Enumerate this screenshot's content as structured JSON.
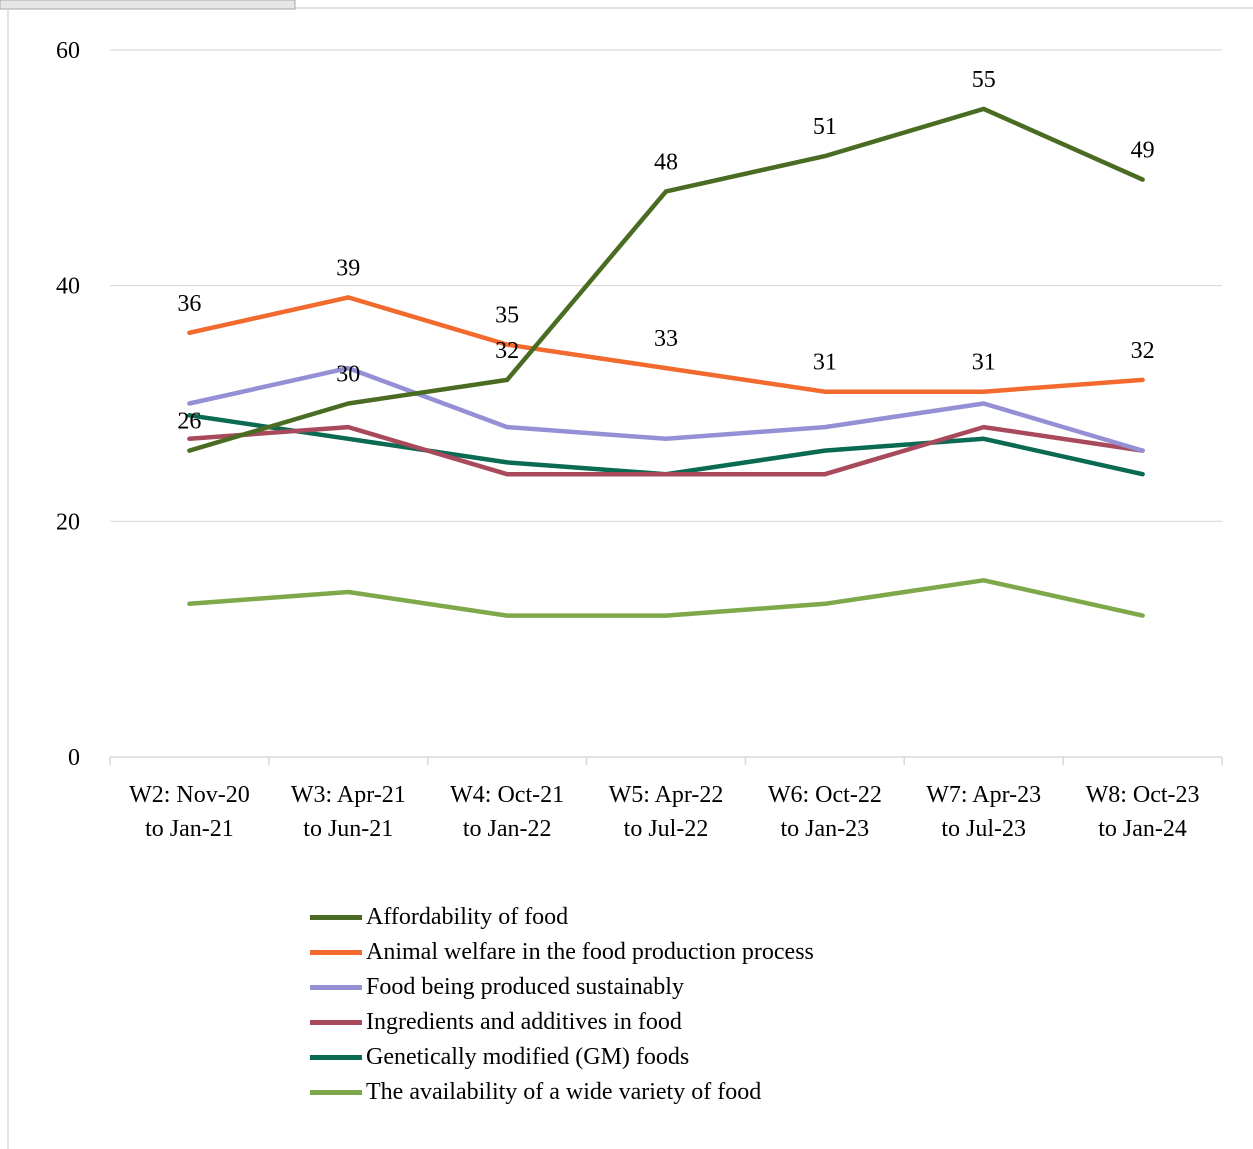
{
  "chart_data": {
    "type": "line",
    "categories": [
      "W2: Nov-20\nto Jan-21",
      "W3: Apr-21\nto Jun-21",
      "W4: Oct-21\nto Jan-22",
      "W5: Apr-22\nto Jul-22",
      "W6: Oct-22\nto Jan-23",
      "W7: Apr-23\nto Jul-23",
      "W8: Oct-23\nto Jan-24"
    ],
    "ylim": [
      0,
      60
    ],
    "yticks": [
      0,
      20,
      40,
      60
    ],
    "grid": true,
    "legend_position": "bottom",
    "series": [
      {
        "name": "Affordability of food",
        "color": "#4A6B22",
        "values": [
          26,
          30,
          32,
          48,
          51,
          55,
          49
        ],
        "labels": true
      },
      {
        "name": "Animal welfare in the food production process",
        "color": "#F26A2E",
        "values": [
          36,
          39,
          35,
          33,
          31,
          31,
          32
        ],
        "labels": true
      },
      {
        "name": "Food being produced sustainably",
        "color": "#9590D6",
        "values": [
          30,
          33,
          28,
          27,
          28,
          30,
          26
        ],
        "labels": false
      },
      {
        "name": "Ingredients and additives in food",
        "color": "#A84A5C",
        "values": [
          27,
          28,
          24,
          24,
          24,
          28,
          26
        ],
        "labels": false
      },
      {
        "name": "Genetically modified (GM) foods",
        "color": "#0B6A52",
        "values": [
          29,
          27,
          25,
          24,
          26,
          27,
          24
        ],
        "labels": false
      },
      {
        "name": "The availability of a wide variety of food",
        "color": "#7EA84A",
        "values": [
          13,
          14,
          12,
          12,
          13,
          15,
          12
        ],
        "labels": false
      }
    ]
  }
}
